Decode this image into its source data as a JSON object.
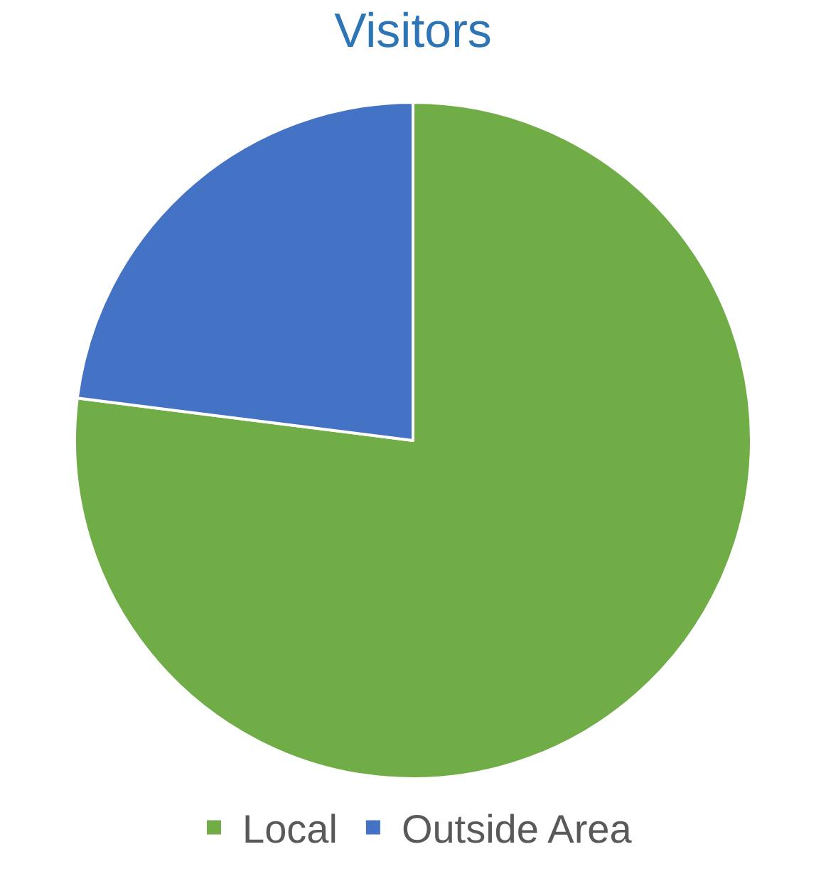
{
  "chart_data": {
    "type": "pie",
    "title": "Visitors",
    "categories": [
      "Local",
      "Outside Area"
    ],
    "values": [
      77,
      23
    ],
    "colors": [
      "#70ad47",
      "#4472c4"
    ],
    "legend": "bottom"
  }
}
